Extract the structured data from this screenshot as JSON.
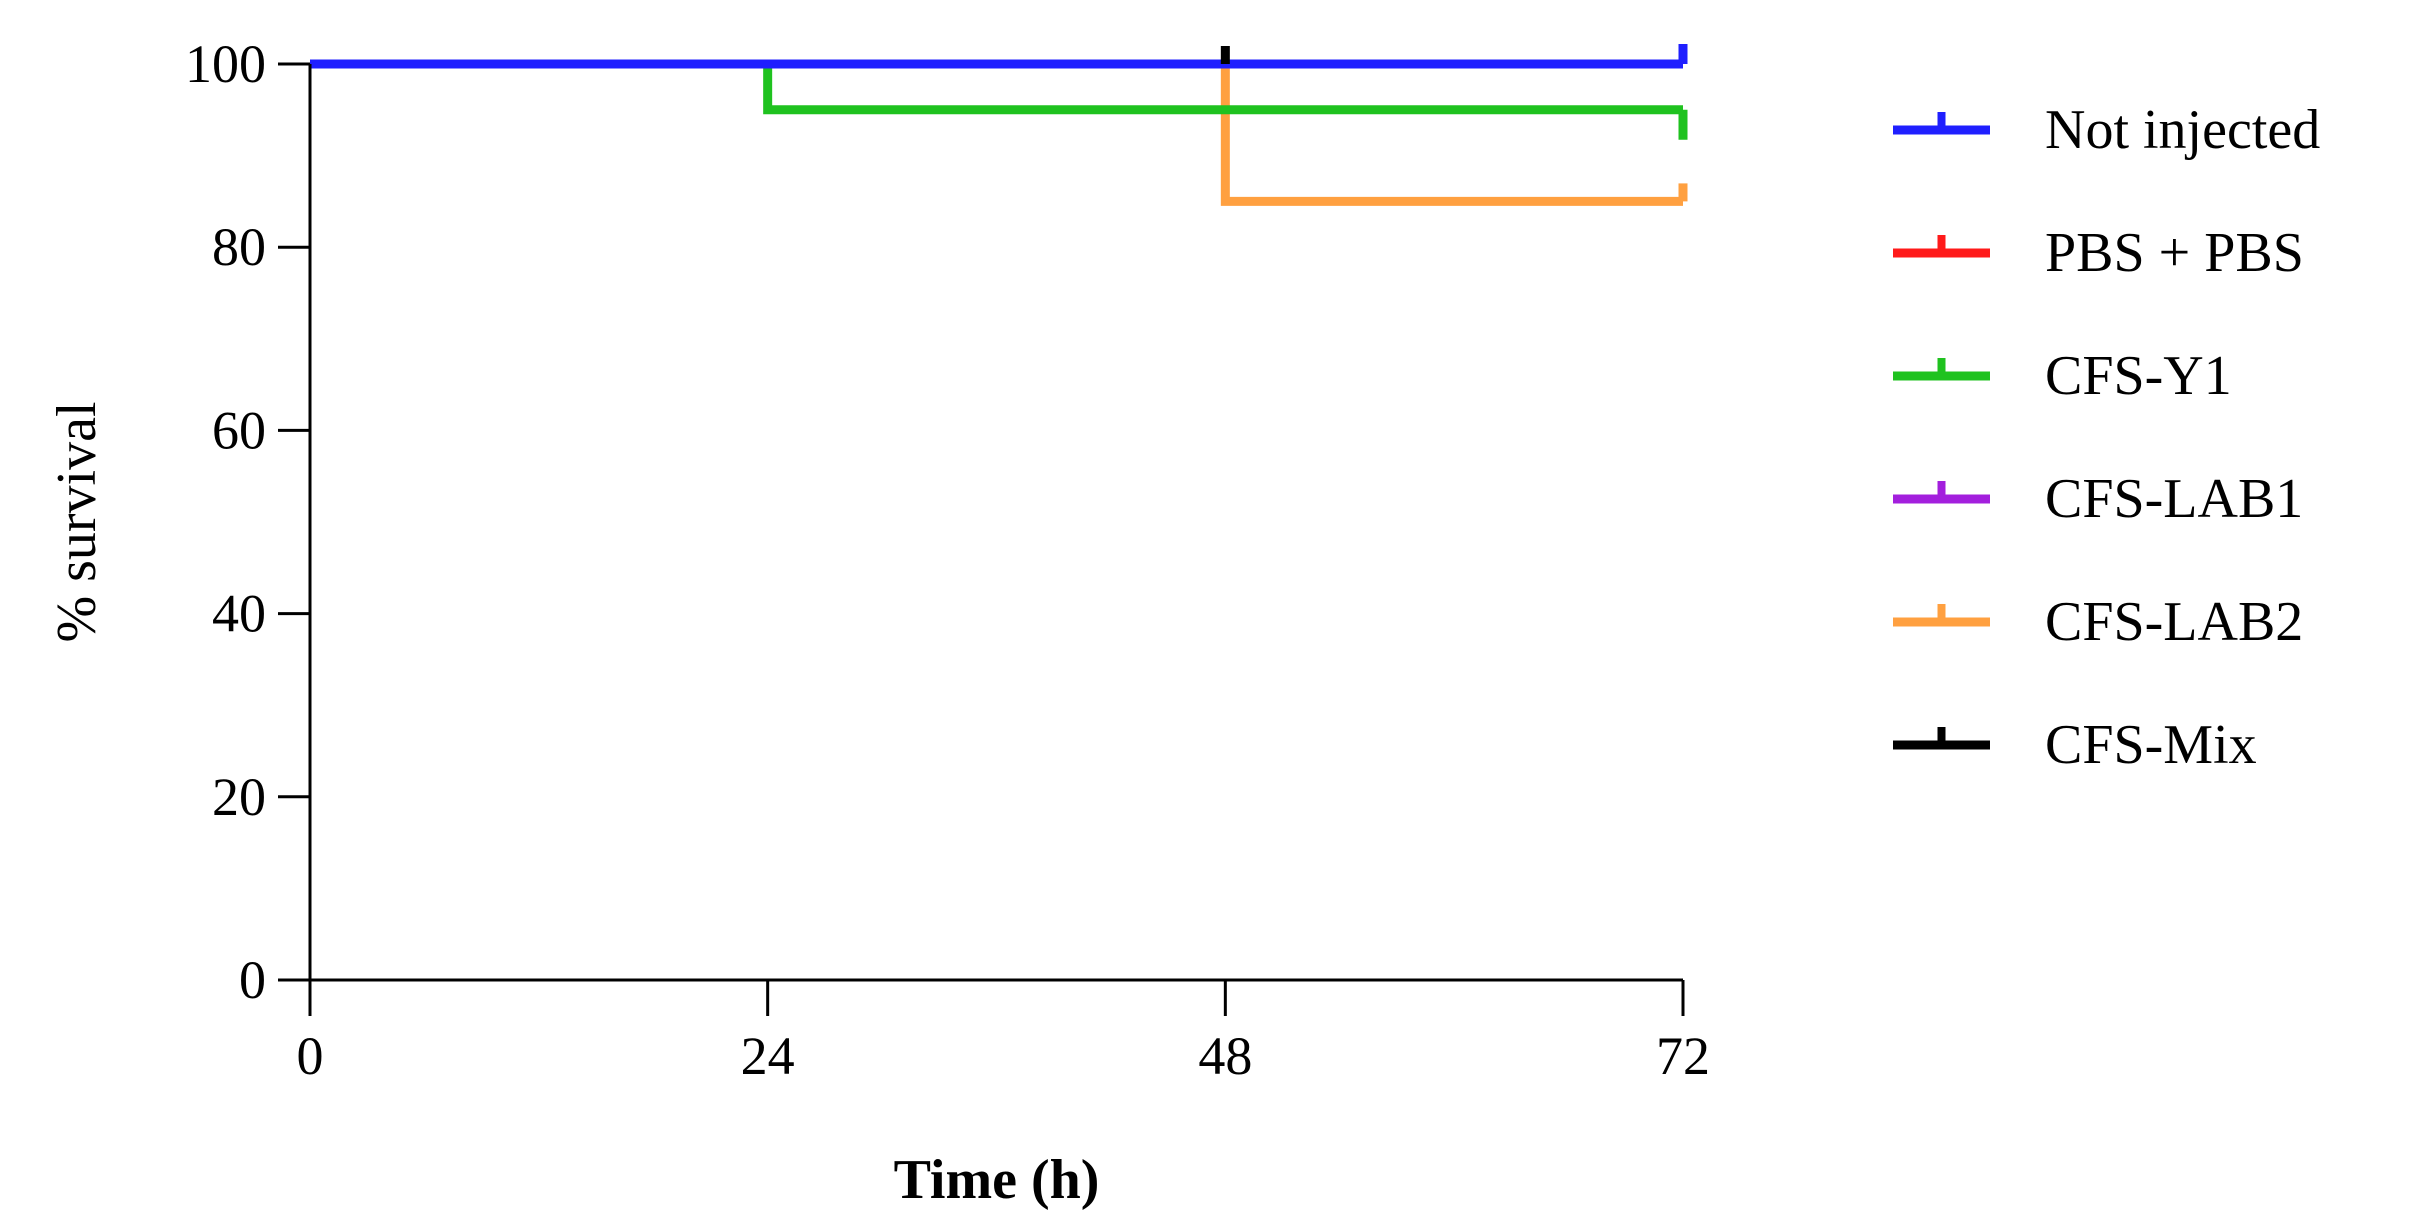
{
  "chart_data": {
    "type": "line",
    "title": "",
    "xlabel": "Time (h)",
    "ylabel": "% survival",
    "xlim": [
      0,
      72
    ],
    "ylim": [
      0,
      100
    ],
    "xticks": [
      0,
      24,
      48,
      72
    ],
    "yticks": [
      0,
      20,
      40,
      60,
      80,
      100
    ],
    "grid": false,
    "legend_position": "right",
    "step": true,
    "series": [
      {
        "name": "Not injected",
        "color": "#1f1fff",
        "points": [
          [
            0,
            100
          ],
          [
            72,
            100
          ]
        ]
      },
      {
        "name": "PBS + PBS",
        "color": "#ff1a1a",
        "points": [
          [
            0,
            100
          ],
          [
            72,
            100
          ]
        ]
      },
      {
        "name": "CFS-Y1",
        "color": "#1fc21f",
        "points": [
          [
            0,
            100
          ],
          [
            24,
            100
          ],
          [
            24,
            95
          ],
          [
            72,
            95
          ]
        ]
      },
      {
        "name": "CFS-LAB1",
        "color": "#a31fdd",
        "points": [
          [
            0,
            100
          ],
          [
            72,
            100
          ]
        ]
      },
      {
        "name": "CFS-LAB2",
        "color": "#ffa040",
        "points": [
          [
            0,
            100
          ],
          [
            48,
            100
          ],
          [
            48,
            85
          ],
          [
            72,
            85
          ]
        ]
      },
      {
        "name": "CFS-Mix",
        "color": "#000000",
        "points": [
          [
            0,
            100
          ],
          [
            72,
            100
          ]
        ]
      }
    ]
  }
}
